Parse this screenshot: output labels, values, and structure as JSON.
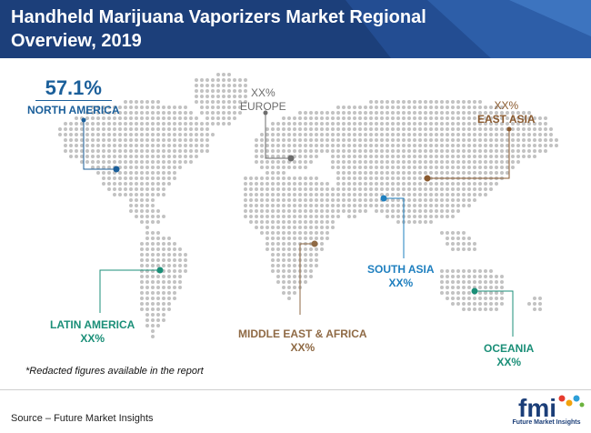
{
  "header": {
    "title": "Handheld Marijuana Vaporizers Market Regional Overview, 2019",
    "bg_color": "#1c3f7a",
    "accent_color": "#2a5aa6"
  },
  "regions": {
    "north_america": {
      "value": "57.1%",
      "name": "NORTH AMERICA",
      "color": "#1b5f9a"
    },
    "europe": {
      "value": "XX%",
      "name": "EUROPE",
      "color": "#6d6d6d"
    },
    "east_asia": {
      "value": "XX%",
      "name": "EAST ASIA",
      "color": "#8a5a2f"
    },
    "south_asia": {
      "name": "SOUTH ASIA",
      "value": "XX%",
      "color": "#1e7fbf"
    },
    "latin_america": {
      "name": "LATIN AMERICA",
      "value": "XX%",
      "color": "#1b8f78"
    },
    "middle_east_africa": {
      "name": "MIDDLE EAST & AFRICA",
      "value": "XX%",
      "color": "#8f6a45"
    },
    "oceania": {
      "name": "OCEANIA",
      "value": "XX%",
      "color": "#1b8f78"
    }
  },
  "map": {
    "dot_color": "#c2c2c2"
  },
  "footer": {
    "note": "*Redacted figures available in the report",
    "source": "Source – Future Market Insights"
  },
  "logo": {
    "text": "Future Market Insights",
    "color": "#1b3e78"
  }
}
